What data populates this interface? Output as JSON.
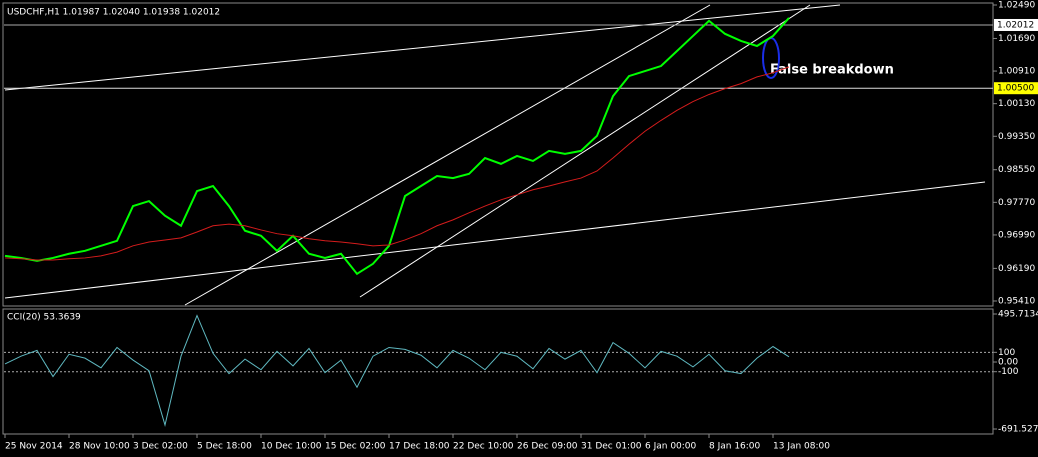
{
  "chart_data": [
    {
      "type": "line",
      "title": "USDCHF,H1  1.01987 1.02040 1.01938 1.02012",
      "annotation": "False breakdown",
      "categories": [
        "25 Nov 2014",
        null,
        null,
        null,
        "28 Nov 10:00",
        null,
        null,
        null,
        "3 Dec 02:00",
        null,
        null,
        null,
        "5 Dec 18:00",
        null,
        null,
        null,
        "10 Dec 10:00",
        null,
        null,
        null,
        "15 Dec 02:00",
        null,
        null,
        null,
        "17 Dec 18:00",
        null,
        null,
        null,
        "22 Dec 10:00",
        null,
        null,
        null,
        "26 Dec 09:00",
        null,
        null,
        null,
        "31 Dec 01:00",
        null,
        null,
        null,
        "6 Jan 00:00",
        null,
        null,
        null,
        "8 Jan 16:00",
        null,
        null,
        null,
        "13 Jan 08:00",
        null
      ],
      "series": [
        {
          "color": "#00ff00",
          "values": [
            0.9649,
            0.9644,
            0.9637,
            0.9644,
            0.9654,
            0.9661,
            0.9673,
            0.9685,
            0.9768,
            0.978,
            0.9745,
            0.9721,
            0.9804,
            0.9816,
            0.9768,
            0.9709,
            0.9697,
            0.9661,
            0.9697,
            0.9654,
            0.9644,
            0.9654,
            0.9606,
            0.963,
            0.9673,
            0.9792,
            0.9816,
            0.984,
            0.9835,
            0.9845,
            0.9883,
            0.9869,
            0.9888,
            0.9876,
            0.99,
            0.9893,
            0.99,
            0.9936,
            1.0031,
            1.0079,
            1.0091,
            1.0103,
            1.0139,
            1.0175,
            1.0211,
            1.018,
            1.0163,
            1.0151,
            1.0175,
            1.0218
          ]
        },
        {
          "color": "#d41c1c",
          "values": [
            0.9644,
            0.9642,
            0.9639,
            0.9639,
            0.9642,
            0.9644,
            0.9649,
            0.9658,
            0.9673,
            0.9682,
            0.9687,
            0.9692,
            0.9706,
            0.9721,
            0.9725,
            0.9721,
            0.9711,
            0.9702,
            0.9697,
            0.969,
            0.9685,
            0.9682,
            0.9678,
            0.9673,
            0.9675,
            0.9687,
            0.9702,
            0.9721,
            0.9735,
            0.9752,
            0.9768,
            0.9783,
            0.9795,
            0.9807,
            0.9816,
            0.9826,
            0.9835,
            0.9852,
            0.9883,
            0.9916,
            0.9947,
            0.9973,
            0.9997,
            1.0018,
            1.0035,
            1.0049,
            1.0061,
            1.0077,
            1.0087,
            1.0101
          ]
        }
      ],
      "current_price": {
        "value": 1.02012,
        "label": "1.02012"
      },
      "level": {
        "value": 1.005,
        "label": "1.00500"
      },
      "ylim": [
        0.9541,
        1.0249
      ],
      "yticks": [
        {
          "value": 1.0249,
          "label": "1.02490"
        },
        {
          "value": 1.0169,
          "label": "1.01690"
        },
        {
          "value": 1.0091,
          "label": "1.00910"
        },
        {
          "value": 1.0013,
          "label": "1.00130"
        },
        {
          "value": 0.9935,
          "label": "0.99350"
        },
        {
          "value": 0.9855,
          "label": "0.98550"
        },
        {
          "value": 0.9777,
          "label": "0.97770"
        },
        {
          "value": 0.9699,
          "label": "0.96990"
        },
        {
          "value": 0.9619,
          "label": "0.96190"
        },
        {
          "value": 0.9541,
          "label": "0.95410"
        }
      ]
    },
    {
      "type": "line",
      "title": "CCI(20) 53.3639",
      "series": [
        {
          "color": "#5fb8c0",
          "values": [
            -20,
            60,
            120,
            -150,
            80,
            40,
            -60,
            150,
            20,
            -90,
            -650,
            60,
            480,
            90,
            -120,
            30,
            -80,
            110,
            -40,
            140,
            -110,
            20,
            -260,
            60,
            150,
            130,
            70,
            -60,
            120,
            40,
            -80,
            100,
            60,
            -70,
            140,
            30,
            120,
            -110,
            200,
            90,
            -60,
            110,
            60,
            -50,
            80,
            -90,
            -120,
            40,
            160,
            53.3639
          ]
        }
      ],
      "ylim": [
        -691.5273,
        495.7134
      ],
      "yticks": [
        495.7134,
        100,
        {
          "value": 0,
          "label": "0.00"
        },
        -100,
        -691.5273
      ],
      "levels": [
        100,
        -100
      ]
    }
  ]
}
